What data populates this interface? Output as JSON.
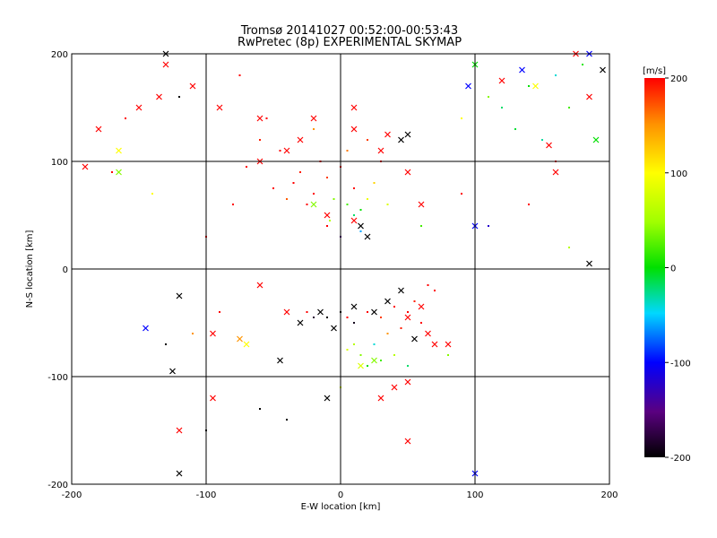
{
  "chart_data": {
    "type": "scatter",
    "title": "Tromsø 20141027 00:52:00-00:53:43",
    "subtitle": "RwPretec (8p) EXPERIMENTAL SKYMAP",
    "xlabel": "E-W location [km]",
    "ylabel": "N-S location [km]",
    "xlim": [
      -200,
      200
    ],
    "ylim": [
      -200,
      200
    ],
    "xticks": [
      "-200",
      "-100",
      "0",
      "100",
      "200"
    ],
    "yticks": [
      "-200",
      "-100",
      "0",
      "100",
      "200"
    ],
    "grid": true,
    "colorbar": {
      "label": "[m/s]",
      "range": [
        -200,
        200
      ],
      "ticks": [
        "-200",
        "-100",
        "0",
        "100",
        "200"
      ],
      "colormap": "rainbow: black-purple-blue-cyan-green-yellow-red"
    },
    "series": [
      {
        "marker": "dot",
        "points": [
          [
            -35,
            80,
            200
          ],
          [
            -30,
            90,
            190
          ],
          [
            -20,
            70,
            200
          ],
          [
            -10,
            85,
            180
          ],
          [
            0,
            95,
            200
          ],
          [
            -40,
            65,
            170
          ],
          [
            -25,
            60,
            200
          ],
          [
            -15,
            100,
            200
          ],
          [
            5,
            110,
            160
          ],
          [
            -50,
            75,
            200
          ],
          [
            -5,
            65,
            40
          ],
          [
            5,
            60,
            20
          ],
          [
            10,
            50,
            -20
          ],
          [
            15,
            55,
            0
          ],
          [
            -8,
            45,
            60
          ],
          [
            -45,
            110,
            200
          ],
          [
            -60,
            120,
            190
          ],
          [
            -70,
            95,
            200
          ],
          [
            -55,
            140,
            200
          ],
          [
            -80,
            60,
            200
          ],
          [
            -20,
            130,
            150
          ],
          [
            20,
            120,
            180
          ],
          [
            30,
            100,
            200
          ],
          [
            25,
            80,
            120
          ],
          [
            35,
            60,
            80
          ],
          [
            10,
            75,
            200
          ],
          [
            20,
            65,
            90
          ],
          [
            -10,
            40,
            200
          ],
          [
            0,
            30,
            -150
          ],
          [
            15,
            35,
            -60
          ],
          [
            0,
            -40,
            -200
          ],
          [
            5,
            -45,
            200
          ],
          [
            10,
            -50,
            -190
          ],
          [
            -10,
            -45,
            -200
          ],
          [
            20,
            -40,
            200
          ],
          [
            30,
            -45,
            180
          ],
          [
            40,
            -35,
            200
          ],
          [
            50,
            -40,
            200
          ],
          [
            55,
            -30,
            190
          ],
          [
            65,
            -15,
            200
          ],
          [
            70,
            -20,
            200
          ],
          [
            60,
            -50,
            200
          ],
          [
            45,
            -55,
            190
          ],
          [
            -20,
            -45,
            -180
          ],
          [
            -25,
            -40,
            200
          ],
          [
            10,
            -70,
            60
          ],
          [
            15,
            -80,
            40
          ],
          [
            20,
            -90,
            0
          ],
          [
            5,
            -75,
            80
          ],
          [
            25,
            -70,
            -40
          ],
          [
            30,
            -85,
            20
          ],
          [
            35,
            -60,
            150
          ],
          [
            40,
            -80,
            60
          ],
          [
            50,
            -90,
            -20
          ],
          [
            80,
            -80,
            40
          ],
          [
            120,
            150,
            -20
          ],
          [
            140,
            170,
            0
          ],
          [
            160,
            180,
            -40
          ],
          [
            180,
            190,
            10
          ],
          [
            130,
            130,
            -10
          ],
          [
            110,
            160,
            40
          ],
          [
            170,
            150,
            20
          ],
          [
            150,
            120,
            -30
          ],
          [
            100,
            190,
            60
          ],
          [
            90,
            140,
            100
          ],
          [
            -120,
            160,
            -200
          ],
          [
            -140,
            70,
            100
          ],
          [
            -170,
            90,
            200
          ],
          [
            -160,
            140,
            200
          ],
          [
            -100,
            30,
            200
          ],
          [
            -90,
            -40,
            200
          ],
          [
            -110,
            -60,
            150
          ],
          [
            -130,
            -70,
            -200
          ],
          [
            -120,
            -150,
            200
          ],
          [
            -100,
            -150,
            -200
          ],
          [
            -60,
            -130,
            -200
          ],
          [
            -40,
            -140,
            -200
          ],
          [
            0,
            -110,
            80
          ],
          [
            60,
            40,
            20
          ],
          [
            90,
            70,
            200
          ],
          [
            110,
            40,
            -120
          ],
          [
            140,
            60,
            200
          ],
          [
            160,
            100,
            200
          ],
          [
            170,
            20,
            60
          ],
          [
            -75,
            180,
            200
          ]
        ]
      },
      {
        "marker": "cross",
        "points": [
          [
            -130,
            190,
            200
          ],
          [
            -150,
            150,
            200
          ],
          [
            -180,
            130,
            200
          ],
          [
            -165,
            110,
            100
          ],
          [
            -190,
            95,
            200
          ],
          [
            -165,
            90,
            40
          ],
          [
            -135,
            160,
            200
          ],
          [
            -110,
            170,
            200
          ],
          [
            -90,
            150,
            200
          ],
          [
            -60,
            100,
            200
          ],
          [
            -40,
            110,
            200
          ],
          [
            -30,
            120,
            200
          ],
          [
            10,
            130,
            200
          ],
          [
            30,
            110,
            200
          ],
          [
            50,
            90,
            200
          ],
          [
            60,
            60,
            200
          ],
          [
            -20,
            60,
            40
          ],
          [
            -10,
            50,
            200
          ],
          [
            10,
            45,
            200
          ],
          [
            20,
            30,
            -200
          ],
          [
            15,
            40,
            -200
          ],
          [
            -130,
            200,
            -200
          ],
          [
            -125,
            -95,
            -200
          ],
          [
            -120,
            -150,
            200
          ],
          [
            -145,
            -55,
            -100
          ],
          [
            -120,
            -25,
            -200
          ],
          [
            -95,
            -60,
            200
          ],
          [
            -75,
            -65,
            150
          ],
          [
            -70,
            -70,
            100
          ],
          [
            -45,
            -85,
            -200
          ],
          [
            -60,
            -15,
            200
          ],
          [
            -40,
            -40,
            200
          ],
          [
            -30,
            -50,
            -200
          ],
          [
            -15,
            -40,
            -200
          ],
          [
            -5,
            -55,
            -200
          ],
          [
            10,
            -35,
            -200
          ],
          [
            25,
            -40,
            -200
          ],
          [
            35,
            -30,
            -200
          ],
          [
            45,
            -20,
            -200
          ],
          [
            50,
            -45,
            200
          ],
          [
            60,
            -35,
            200
          ],
          [
            65,
            -60,
            200
          ],
          [
            70,
            -70,
            200
          ],
          [
            55,
            -65,
            -200
          ],
          [
            80,
            -70,
            200
          ],
          [
            40,
            -110,
            200
          ],
          [
            30,
            -120,
            200
          ],
          [
            50,
            -105,
            200
          ],
          [
            -10,
            -120,
            -200
          ],
          [
            15,
            -90,
            80
          ],
          [
            25,
            -85,
            40
          ],
          [
            -95,
            -120,
            200
          ],
          [
            -120,
            -190,
            -200
          ],
          [
            50,
            -160,
            200
          ],
          [
            100,
            -190,
            -100
          ],
          [
            100,
            40,
            -100
          ],
          [
            95,
            170,
            -100
          ],
          [
            100,
            190,
            0
          ],
          [
            120,
            175,
            200
          ],
          [
            135,
            185,
            -100
          ],
          [
            145,
            170,
            100
          ],
          [
            175,
            200,
            200
          ],
          [
            185,
            200,
            -100
          ],
          [
            195,
            185,
            -200
          ],
          [
            185,
            160,
            200
          ],
          [
            185,
            5,
            -200
          ],
          [
            190,
            120,
            0
          ],
          [
            155,
            115,
            200
          ],
          [
            160,
            90,
            200
          ],
          [
            45,
            120,
            -200
          ],
          [
            50,
            125,
            -200
          ],
          [
            35,
            125,
            200
          ],
          [
            -20,
            140,
            200
          ],
          [
            10,
            150,
            200
          ],
          [
            -60,
            140,
            200
          ]
        ]
      }
    ]
  }
}
